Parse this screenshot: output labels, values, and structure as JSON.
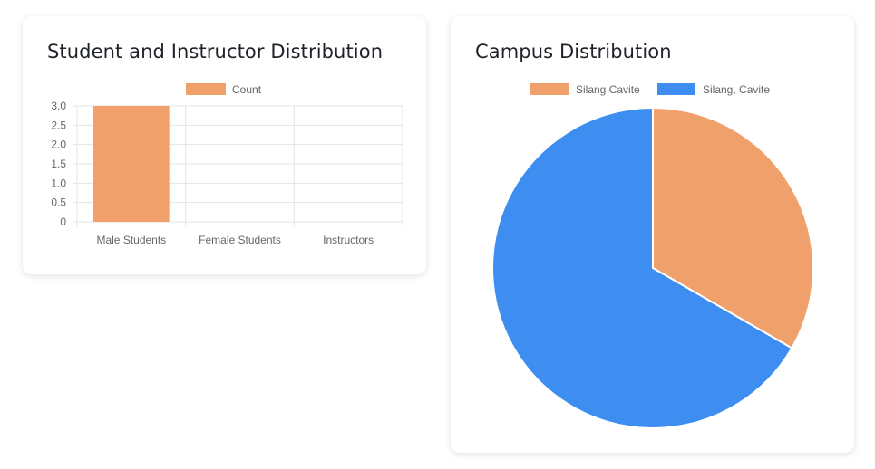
{
  "cards": {
    "bar": {
      "title": "Student and Instructor Distribution"
    },
    "pie": {
      "title": "Campus Distribution"
    }
  },
  "colors": {
    "orange": "#f0a06a",
    "blue": "#3d8ef0",
    "grid": "#e4e4e4",
    "tick": "#666666"
  },
  "chart_data": [
    {
      "type": "bar",
      "title": "Student and Instructor Distribution",
      "categories": [
        "Male Students",
        "Female Students",
        "Instructors"
      ],
      "series": [
        {
          "name": "Count",
          "values": [
            3,
            0,
            0
          ],
          "color": "#f0a06a"
        }
      ],
      "yticks": [
        "0",
        "0.5",
        "1.0",
        "1.5",
        "2.0",
        "2.5",
        "3.0"
      ],
      "ylim": [
        0,
        3
      ],
      "legend_position": "top",
      "grid": true
    },
    {
      "type": "pie",
      "title": "Campus Distribution",
      "labels": [
        "Silang Cavite",
        "Silang, Cavite"
      ],
      "values": [
        1,
        2
      ],
      "colors": [
        "#f0a06a",
        "#3d8ef0"
      ],
      "legend_position": "top"
    }
  ]
}
